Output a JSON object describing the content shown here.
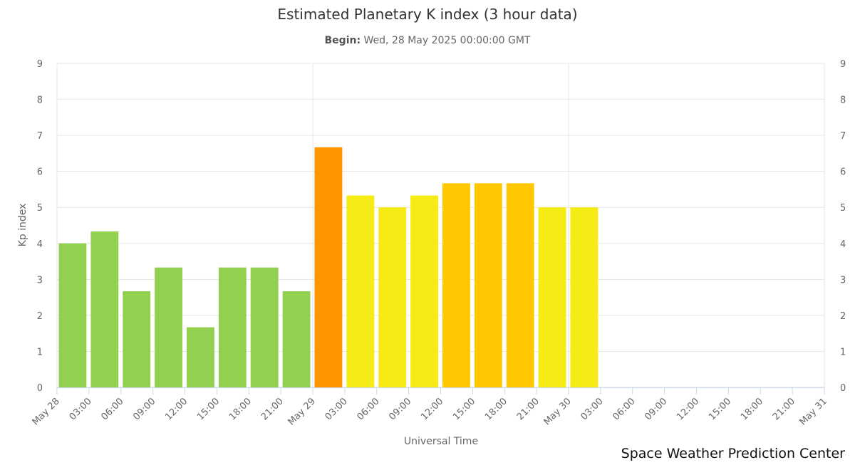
{
  "header": {
    "title": "Estimated Planetary K index (3 hour data)",
    "subtitle_prefix": "Begin:",
    "subtitle_value": "Wed, 28 May 2025 00:00:00 GMT"
  },
  "footer": {
    "credit": "Space Weather Prediction Center"
  },
  "colors": {
    "green": "#92d050",
    "yellow": "#f6eb14",
    "amber": "#ffc800",
    "orange": "#ff9600",
    "grid": "#e6e6e6",
    "axis": "#ccd6eb"
  },
  "chart_data": {
    "type": "bar",
    "xlabel": "Universal Time",
    "ylabel": "Kp index",
    "ylim": [
      0,
      9
    ],
    "yticks": [
      0,
      1,
      2,
      3,
      4,
      5,
      6,
      7,
      8,
      9
    ],
    "y_axis_right_mirrored": true,
    "grid": true,
    "x_range_hours": [
      0,
      72
    ],
    "x_tick_labels": [
      "May 28",
      "03:00",
      "06:00",
      "09:00",
      "12:00",
      "15:00",
      "18:00",
      "21:00",
      "May 29",
      "03:00",
      "06:00",
      "09:00",
      "12:00",
      "15:00",
      "18:00",
      "21:00",
      "May 30",
      "03:00",
      "06:00",
      "09:00",
      "12:00",
      "15:00",
      "18:00",
      "21:00",
      "May 31"
    ],
    "bars": [
      {
        "start": "May 28 00:00",
        "value": 4.0,
        "color": "#92d050"
      },
      {
        "start": "May 28 03:00",
        "value": 4.33,
        "color": "#92d050"
      },
      {
        "start": "May 28 06:00",
        "value": 2.67,
        "color": "#92d050"
      },
      {
        "start": "May 28 09:00",
        "value": 3.33,
        "color": "#92d050"
      },
      {
        "start": "May 28 12:00",
        "value": 1.67,
        "color": "#92d050"
      },
      {
        "start": "May 28 15:00",
        "value": 3.33,
        "color": "#92d050"
      },
      {
        "start": "May 28 18:00",
        "value": 3.33,
        "color": "#92d050"
      },
      {
        "start": "May 28 21:00",
        "value": 2.67,
        "color": "#92d050"
      },
      {
        "start": "May 29 00:00",
        "value": 6.67,
        "color": "#ff9600"
      },
      {
        "start": "May 29 03:00",
        "value": 5.33,
        "color": "#f6eb14"
      },
      {
        "start": "May 29 06:00",
        "value": 5.0,
        "color": "#f6eb14"
      },
      {
        "start": "May 29 09:00",
        "value": 5.33,
        "color": "#f6eb14"
      },
      {
        "start": "May 29 12:00",
        "value": 5.67,
        "color": "#ffc800"
      },
      {
        "start": "May 29 15:00",
        "value": 5.67,
        "color": "#ffc800"
      },
      {
        "start": "May 29 18:00",
        "value": 5.67,
        "color": "#ffc800"
      },
      {
        "start": "May 29 21:00",
        "value": 5.0,
        "color": "#f6eb14"
      },
      {
        "start": "May 30 00:00",
        "value": 5.0,
        "color": "#f6eb14"
      }
    ]
  }
}
